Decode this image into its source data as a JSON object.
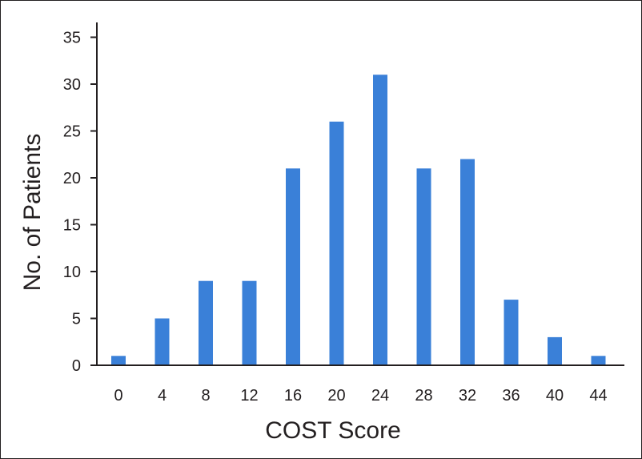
{
  "chart_data": {
    "type": "bar",
    "title": "",
    "xlabel": "COST Score",
    "ylabel": "No. of Patients",
    "categories": [
      "0",
      "4",
      "8",
      "12",
      "16",
      "20",
      "24",
      "28",
      "32",
      "36",
      "40",
      "44"
    ],
    "values": [
      1,
      5,
      9,
      9,
      21,
      26,
      31,
      21,
      22,
      7,
      3,
      1
    ],
    "ylim": [
      0,
      36
    ],
    "yticks": [
      0,
      5,
      10,
      15,
      20,
      25,
      30,
      35
    ],
    "grid": false,
    "legend": "none",
    "bar_color": "#3a80d8",
    "axis_color": "#231f20"
  }
}
